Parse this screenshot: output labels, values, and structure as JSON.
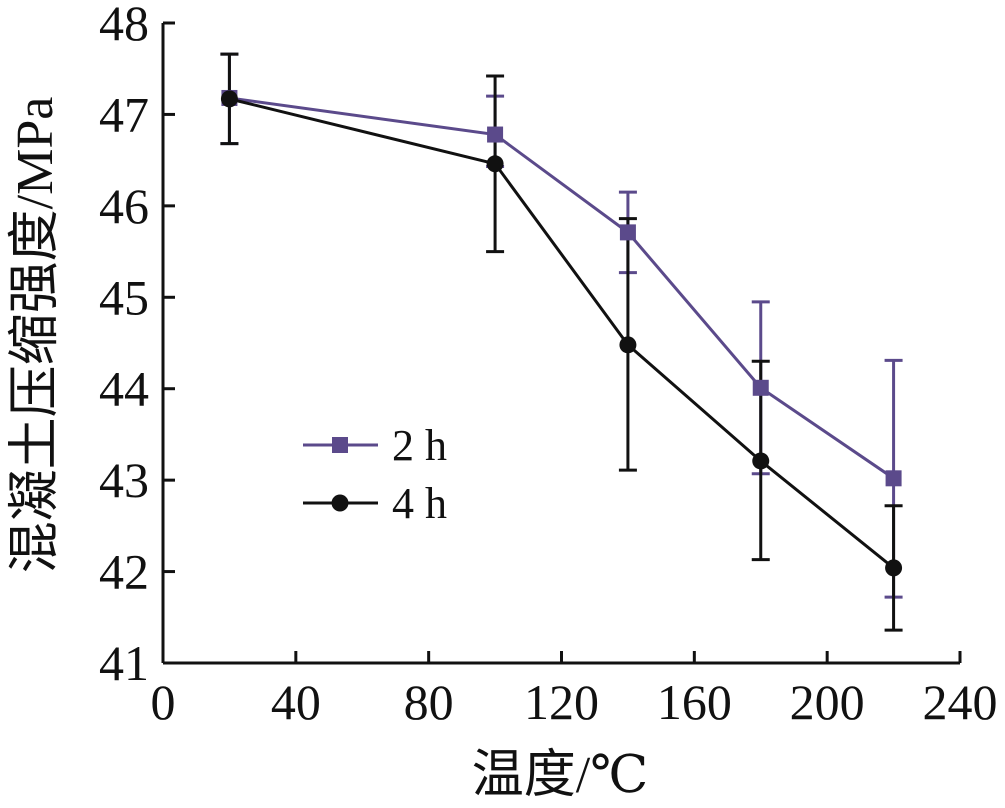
{
  "chart_data": {
    "type": "line",
    "title": "",
    "xlabel": "温度/℃",
    "ylabel": "混凝土压缩强度/MPa",
    "xlim": [
      0,
      240
    ],
    "ylim": [
      41,
      48
    ],
    "xticks": [
      0,
      40,
      80,
      120,
      160,
      200,
      240
    ],
    "yticks": [
      41,
      42,
      43,
      44,
      45,
      46,
      47,
      48
    ],
    "grid": false,
    "legend_position": "center-left",
    "x": [
      20,
      100,
      140,
      180,
      220
    ],
    "series": [
      {
        "name": "2 h",
        "marker": "square",
        "color": "#5b4a8b",
        "values": [
          47.18,
          46.78,
          45.71,
          44.01,
          43.02
        ],
        "error_low": [
          46.68,
          46.43,
          45.27,
          43.07,
          41.72
        ],
        "error_high": [
          47.66,
          47.2,
          46.15,
          44.95,
          44.31
        ]
      },
      {
        "name": "4 h",
        "marker": "circle",
        "color": "#111111",
        "values": [
          47.17,
          46.46,
          44.48,
          43.21,
          42.04
        ],
        "error_low": [
          46.68,
          45.5,
          43.11,
          42.13,
          41.36
        ],
        "error_high": [
          47.66,
          47.42,
          45.86,
          44.3,
          42.72
        ]
      }
    ]
  }
}
